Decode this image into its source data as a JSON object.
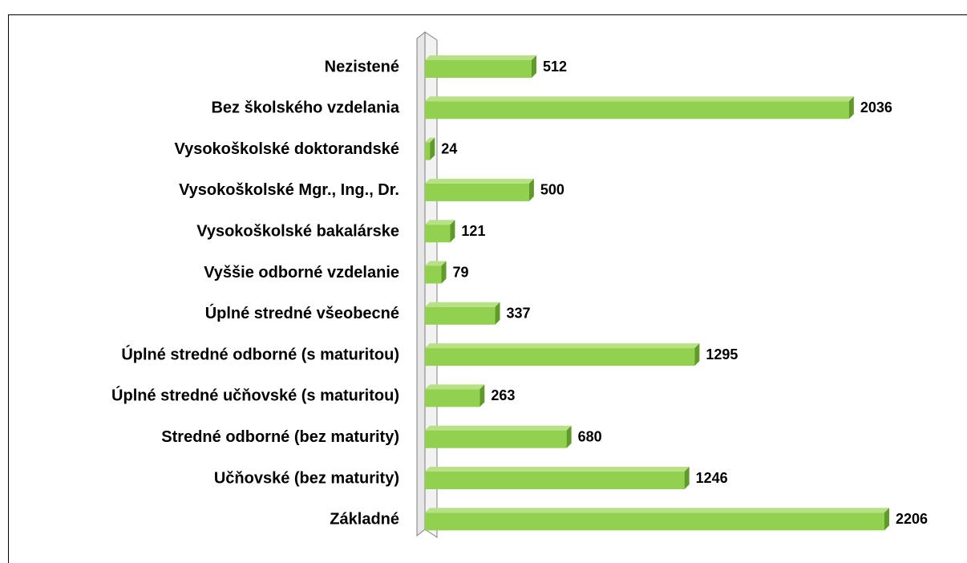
{
  "chart_data": {
    "type": "bar3d_horizontal",
    "categories": [
      "Nezistené",
      "Bez školského vzdelania",
      "Vysokoškolské doktorandské",
      "Vysokoškolské Mgr., Ing., Dr.",
      "Vysokoškolské bakalárske",
      "Vyššie odborné vzdelanie",
      "Úplné stredné všeobecné",
      "Úplné stredné odborné (s maturitou)",
      "Úplné stredné učňovské (s maturitou)",
      "Stredné odborné (bez maturity)",
      "Učňovské (bez maturity)",
      "Základné"
    ],
    "values": [
      512,
      2036,
      24,
      500,
      121,
      79,
      337,
      1295,
      263,
      680,
      1246,
      2206
    ],
    "color": "#92d050"
  }
}
